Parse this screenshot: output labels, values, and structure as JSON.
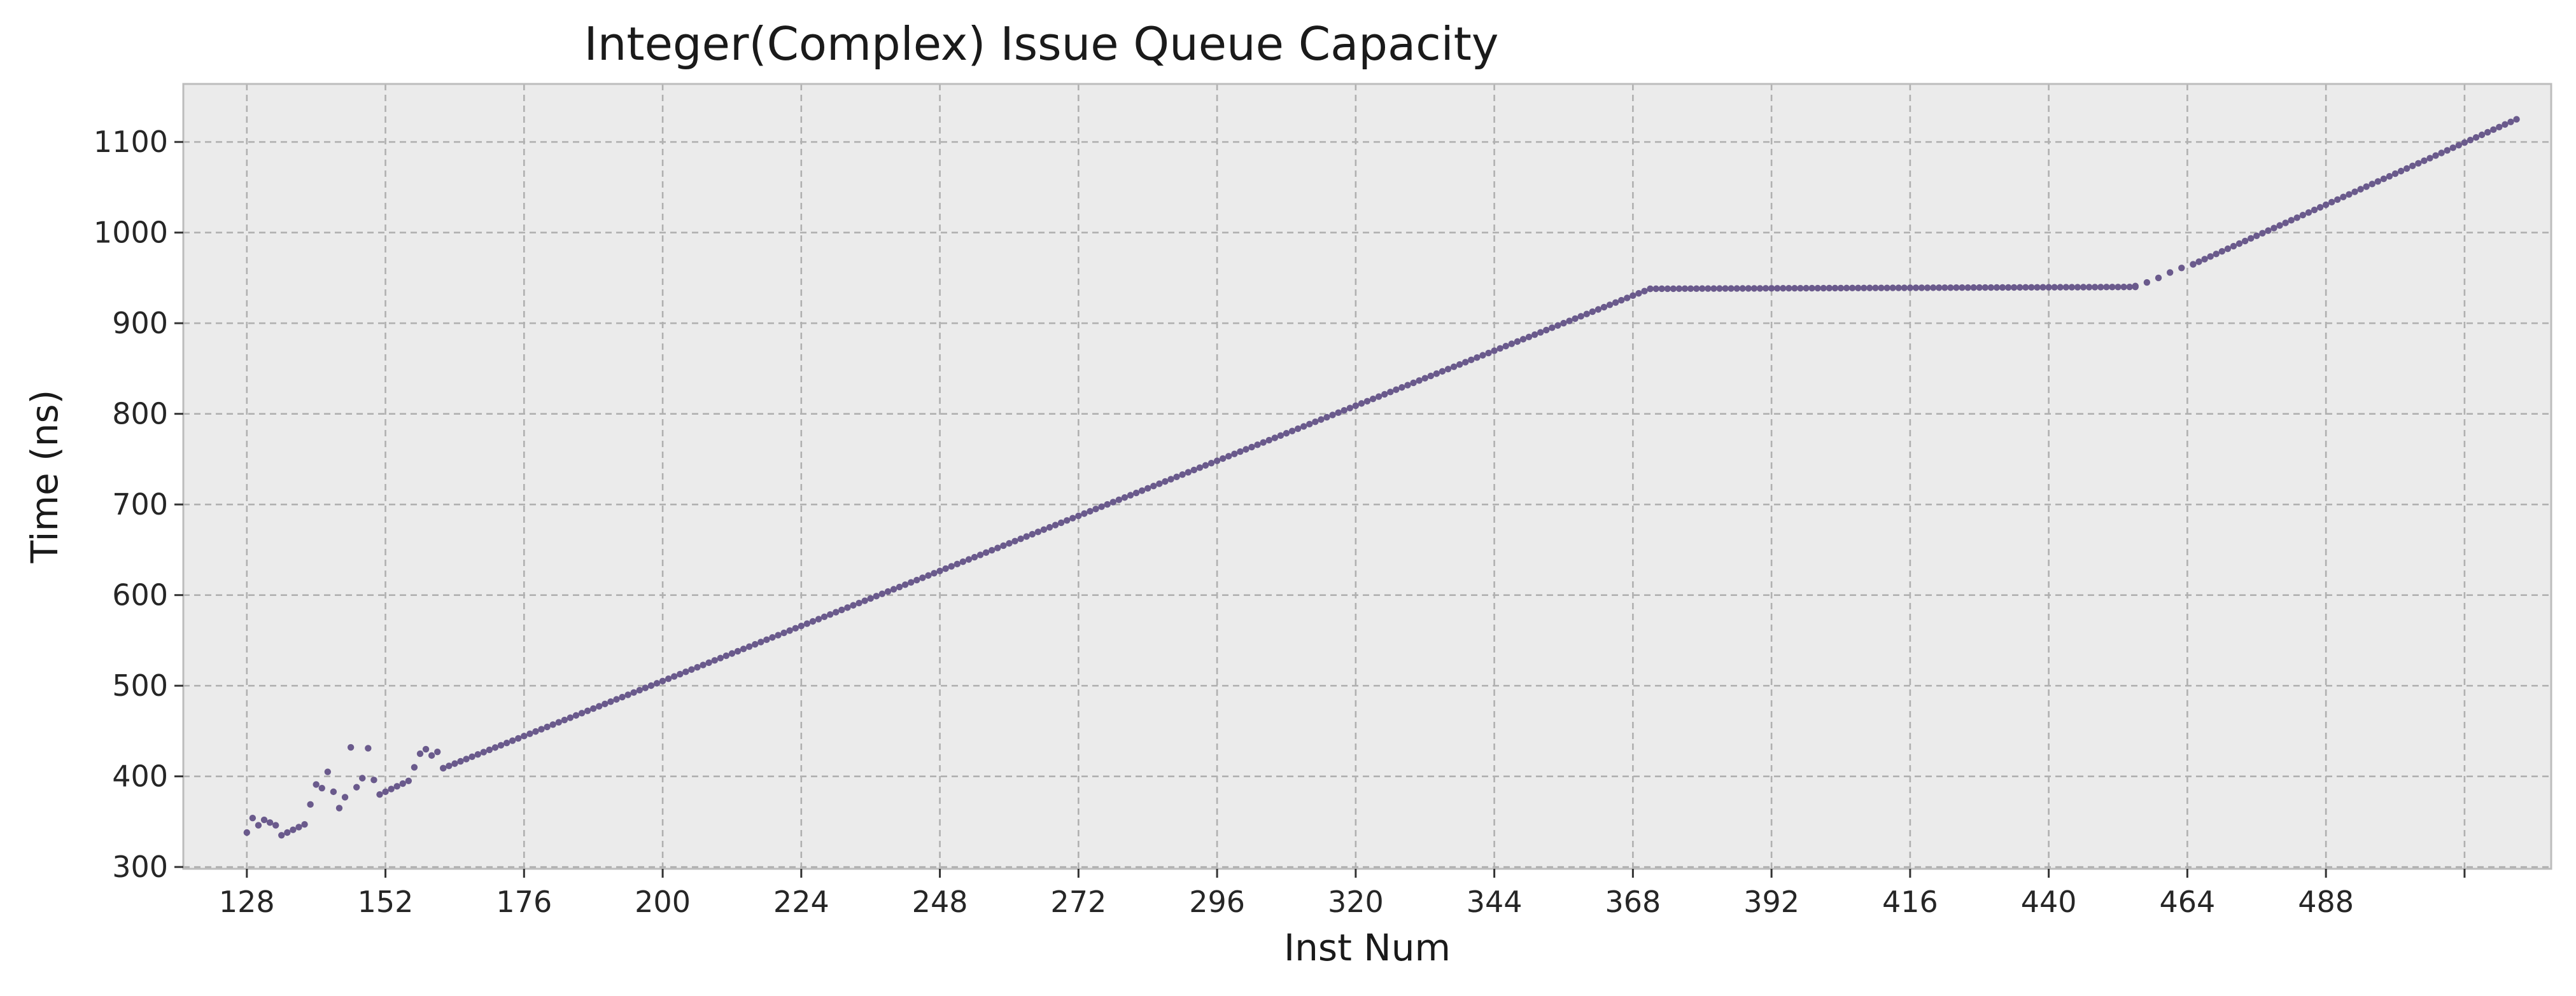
{
  "chart_data": {
    "type": "scatter",
    "title": "Integer(Complex) Issue Queue Capacity",
    "xlabel": "Inst Num",
    "ylabel": "Time (ns)",
    "xlim": [
      117,
      527
    ],
    "ylim": [
      298,
      1164
    ],
    "xticks": [
      128,
      152,
      176,
      200,
      224,
      248,
      272,
      296,
      320,
      344,
      368,
      392,
      416,
      440,
      464,
      488
    ],
    "extra_xtick_marks": [
      512
    ],
    "yticks": [
      300,
      400,
      500,
      600,
      700,
      800,
      900,
      1000,
      1100
    ],
    "grid": true,
    "legend": "none",
    "series": [
      {
        "color": "#6a5a8c",
        "points": [
          [
            128,
            338
          ],
          [
            129,
            354
          ],
          [
            130,
            346
          ],
          [
            131,
            352
          ],
          [
            132,
            349
          ],
          [
            133,
            346
          ],
          [
            134,
            335
          ],
          [
            135,
            338
          ],
          [
            136,
            341
          ],
          [
            137,
            344
          ],
          [
            138,
            347
          ],
          [
            139,
            369
          ],
          [
            140,
            391
          ],
          [
            141,
            387
          ],
          [
            142,
            405
          ],
          [
            143,
            383
          ],
          [
            144,
            365
          ],
          [
            145,
            377
          ],
          [
            146,
            432
          ],
          [
            147,
            388
          ],
          [
            148,
            398
          ],
          [
            149,
            431
          ],
          [
            150,
            396
          ],
          [
            151,
            380
          ],
          [
            152,
            383
          ],
          [
            153,
            386
          ],
          [
            154,
            389
          ],
          [
            155,
            392
          ],
          [
            156,
            395
          ],
          [
            157,
            410
          ],
          [
            158,
            425
          ],
          [
            159,
            430
          ],
          [
            160,
            423
          ],
          [
            161,
            427
          ],
          [
            162,
            409
          ]
        ],
        "segments": [
          {
            "x_start": 162,
            "x_end": 371,
            "y_start": 409,
            "y_end": 938
          },
          {
            "x_start": 371,
            "x_end": 455,
            "y_start": 938,
            "y_end": 940
          },
          {
            "x_start": 465,
            "x_end": 521,
            "y_start": 965,
            "y_end": 1125
          }
        ],
        "curve_points": [
          [
            455,
            941
          ],
          [
            457,
            945
          ],
          [
            459,
            950
          ],
          [
            461,
            956
          ],
          [
            463,
            961
          ],
          [
            465,
            965
          ]
        ]
      }
    ]
  }
}
